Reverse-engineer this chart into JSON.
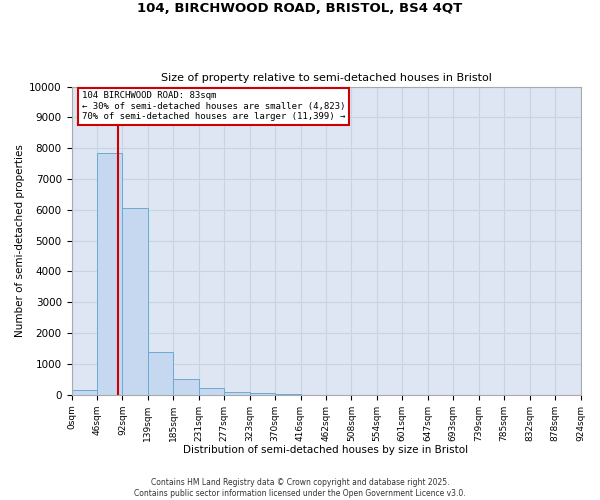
{
  "title_line1": "104, BIRCHWOOD ROAD, BRISTOL, BS4 4QT",
  "title_line2": "Size of property relative to semi-detached houses in Bristol",
  "xlabel": "Distribution of semi-detached houses by size in Bristol",
  "ylabel": "Number of semi-detached properties",
  "property_label": "104 BIRCHWOOD ROAD: 83sqm",
  "pct_smaller": 30,
  "pct_larger": 70,
  "count_smaller": 4823,
  "count_larger": 11399,
  "bin_labels": [
    "0sqm",
    "46sqm",
    "92sqm",
    "139sqm",
    "185sqm",
    "231sqm",
    "277sqm",
    "323sqm",
    "370sqm",
    "416sqm",
    "462sqm",
    "508sqm",
    "554sqm",
    "601sqm",
    "647sqm",
    "693sqm",
    "739sqm",
    "785sqm",
    "832sqm",
    "878sqm",
    "924sqm"
  ],
  "bar_values": [
    150,
    7850,
    6050,
    1380,
    500,
    220,
    100,
    50,
    10,
    0,
    0,
    0,
    0,
    0,
    0,
    0,
    0,
    0,
    0,
    0
  ],
  "bar_color": "#c5d8f0",
  "bar_edge_color": "#6aaad4",
  "grid_color": "#c8d4e4",
  "background_color": "#dde6f2",
  "vline_color": "#cc0000",
  "vline_x": 1.82,
  "annotation_box_color": "#cc0000",
  "ylim": [
    0,
    10000
  ],
  "yticks": [
    0,
    1000,
    2000,
    3000,
    4000,
    5000,
    6000,
    7000,
    8000,
    9000,
    10000
  ],
  "footer_line1": "Contains HM Land Registry data © Crown copyright and database right 2025.",
  "footer_line2": "Contains public sector information licensed under the Open Government Licence v3.0."
}
